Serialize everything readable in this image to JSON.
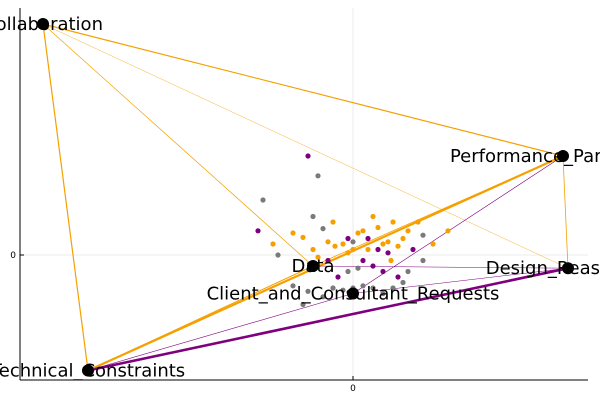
{
  "chart_data": {
    "type": "scatter",
    "grid": true,
    "legend": "none",
    "x_tick_label": "0",
    "y_tick_label": "0",
    "colors": {
      "orange": "#f5a000",
      "purple": "#7f007f",
      "gray": "#7a7a7a",
      "node": "#000000",
      "axis": "#000000",
      "grid": "#ebebeb"
    },
    "nodes": [
      {
        "id": "collab",
        "label": "Collaboration",
        "x": -3.1,
        "y": 2.1
      },
      {
        "id": "perf",
        "label": "Performance_Parameters",
        "x": 2.1,
        "y": 0.9
      },
      {
        "id": "data",
        "label": "Data",
        "x": -0.4,
        "y": -0.1
      },
      {
        "id": "client",
        "label": "Client_and_Consultant_Requests",
        "x": 0.0,
        "y": -0.35
      },
      {
        "id": "design",
        "label": "Design_Reasoning",
        "x": 2.15,
        "y": -0.12
      },
      {
        "id": "tech",
        "label": "Technical_Constraints",
        "x": -2.65,
        "y": -1.05
      }
    ],
    "edges": [
      {
        "from": "collab",
        "to": "perf",
        "color": "orange",
        "weight": 1.2
      },
      {
        "from": "collab",
        "to": "tech",
        "color": "orange",
        "weight": 1.2
      },
      {
        "from": "collab",
        "to": "data",
        "color": "orange",
        "weight": 0.7
      },
      {
        "from": "collab",
        "to": "design",
        "color": "orange",
        "weight": 0.4
      },
      {
        "from": "perf",
        "to": "design",
        "color": "orange",
        "weight": 0.8
      },
      {
        "from": "perf",
        "to": "data",
        "color": "orange",
        "weight": 0.8
      },
      {
        "from": "tech",
        "to": "perf",
        "color": "orange",
        "weight": 2.2
      },
      {
        "from": "tech",
        "to": "design",
        "color": "purple",
        "weight": 2.6
      },
      {
        "from": "tech",
        "to": "data",
        "color": "orange",
        "weight": 1.0
      },
      {
        "from": "design",
        "to": "data",
        "color": "purple",
        "weight": 0.5
      },
      {
        "from": "perf",
        "to": "client",
        "color": "purple",
        "weight": 0.6
      },
      {
        "from": "design",
        "to": "client",
        "color": "purple",
        "weight": 0.5
      },
      {
        "from": "tech",
        "to": "client",
        "color": "purple",
        "weight": 0.6
      }
    ],
    "points": [
      {
        "x": -0.45,
        "y": 0.9,
        "c": "purple"
      },
      {
        "x": -0.35,
        "y": 0.72,
        "c": "gray"
      },
      {
        "x": -0.9,
        "y": 0.5,
        "c": "gray"
      },
      {
        "x": -0.95,
        "y": 0.22,
        "c": "purple"
      },
      {
        "x": -0.8,
        "y": 0.1,
        "c": "orange"
      },
      {
        "x": -0.75,
        "y": 0.0,
        "c": "gray"
      },
      {
        "x": -0.5,
        "y": 0.16,
        "c": "orange"
      },
      {
        "x": -0.3,
        "y": 0.24,
        "c": "gray"
      },
      {
        "x": -0.25,
        "y": 0.12,
        "c": "orange"
      },
      {
        "x": -0.18,
        "y": 0.08,
        "c": "orange"
      },
      {
        "x": -0.1,
        "y": 0.1,
        "c": "orange"
      },
      {
        "x": -0.05,
        "y": 0.02,
        "c": "orange"
      },
      {
        "x": 0.0,
        "y": 0.05,
        "c": "orange"
      },
      {
        "x": 0.05,
        "y": 0.2,
        "c": "orange"
      },
      {
        "x": 0.1,
        "y": 0.22,
        "c": "orange"
      },
      {
        "x": 0.15,
        "y": 0.15,
        "c": "purple"
      },
      {
        "x": 0.25,
        "y": 0.25,
        "c": "orange"
      },
      {
        "x": 0.3,
        "y": 0.1,
        "c": "orange"
      },
      {
        "x": 0.35,
        "y": 0.02,
        "c": "purple"
      },
      {
        "x": 0.38,
        "y": -0.05,
        "c": "orange"
      },
      {
        "x": 0.45,
        "y": 0.08,
        "c": "orange"
      },
      {
        "x": 0.5,
        "y": 0.15,
        "c": "orange"
      },
      {
        "x": 0.55,
        "y": 0.22,
        "c": "orange"
      },
      {
        "x": 0.6,
        "y": 0.05,
        "c": "purple"
      },
      {
        "x": 0.7,
        "y": 0.18,
        "c": "gray"
      },
      {
        "x": 0.8,
        "y": 0.1,
        "c": "orange"
      },
      {
        "x": 0.7,
        "y": -0.05,
        "c": "gray"
      },
      {
        "x": 0.55,
        "y": -0.15,
        "c": "gray"
      },
      {
        "x": 0.45,
        "y": -0.2,
        "c": "purple"
      },
      {
        "x": 0.3,
        "y": -0.15,
        "c": "purple"
      },
      {
        "x": 0.2,
        "y": -0.1,
        "c": "purple"
      },
      {
        "x": 0.1,
        "y": -0.05,
        "c": "purple"
      },
      {
        "x": 0.05,
        "y": -0.12,
        "c": "gray"
      },
      {
        "x": -0.05,
        "y": -0.15,
        "c": "gray"
      },
      {
        "x": -0.15,
        "y": -0.2,
        "c": "purple"
      },
      {
        "x": -0.25,
        "y": -0.05,
        "c": "purple"
      },
      {
        "x": -0.35,
        "y": -0.02,
        "c": "orange"
      },
      {
        "x": -0.4,
        "y": 0.05,
        "c": "orange"
      },
      {
        "x": -0.2,
        "y": -0.3,
        "c": "gray"
      },
      {
        "x": -0.1,
        "y": -0.32,
        "c": "gray"
      },
      {
        "x": 0.0,
        "y": -0.3,
        "c": "gray"
      },
      {
        "x": 0.1,
        "y": -0.28,
        "c": "gray"
      },
      {
        "x": 0.2,
        "y": -0.3,
        "c": "gray"
      },
      {
        "x": 0.3,
        "y": -0.35,
        "c": "gray"
      },
      {
        "x": 0.4,
        "y": -0.3,
        "c": "gray"
      },
      {
        "x": 0.5,
        "y": -0.25,
        "c": "gray"
      },
      {
        "x": -0.3,
        "y": -0.38,
        "c": "gray"
      },
      {
        "x": -0.45,
        "y": -0.33,
        "c": "gray"
      },
      {
        "x": -0.6,
        "y": -0.28,
        "c": "gray"
      },
      {
        "x": -0.5,
        "y": -0.45,
        "c": "gray"
      },
      {
        "x": 0.15,
        "y": 0.05,
        "c": "orange"
      },
      {
        "x": 0.25,
        "y": 0.05,
        "c": "purple"
      },
      {
        "x": 0.35,
        "y": 0.12,
        "c": "orange"
      },
      {
        "x": -0.05,
        "y": 0.15,
        "c": "purple"
      },
      {
        "x": 0.0,
        "y": 0.12,
        "c": "gray"
      },
      {
        "x": 0.4,
        "y": 0.3,
        "c": "orange"
      },
      {
        "x": -0.4,
        "y": 0.35,
        "c": "gray"
      },
      {
        "x": 0.95,
        "y": 0.22,
        "c": "orange"
      },
      {
        "x": 0.65,
        "y": 0.3,
        "c": "orange"
      },
      {
        "x": 0.2,
        "y": 0.35,
        "c": "orange"
      },
      {
        "x": -0.2,
        "y": 0.3,
        "c": "orange"
      },
      {
        "x": -0.6,
        "y": 0.2,
        "c": "orange"
      }
    ]
  }
}
